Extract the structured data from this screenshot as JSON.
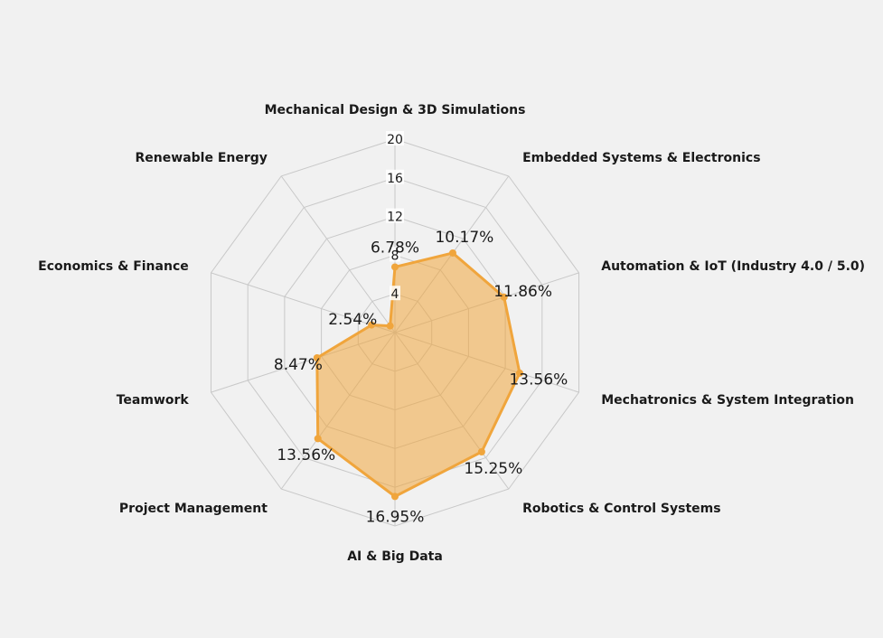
{
  "chart_data": {
    "type": "radar",
    "categories": [
      "Mechanical Design & 3D Simulations",
      "Embedded Systems & Electronics",
      "Automation & IoT (Industry 4.0 / 5.0)",
      "Mechatronics & System Integration",
      "Robotics & Control Systems",
      "AI & Big Data",
      "Project Management",
      "Teamwork",
      "Economics & Finance",
      "Renewable Energy"
    ],
    "values": [
      6.78,
      10.17,
      11.86,
      13.56,
      15.25,
      16.95,
      13.56,
      8.47,
      2.54,
      0.85
    ],
    "data_labels": [
      "6.78%",
      "10.17%",
      "11.86%",
      "13.56%",
      "15.25%",
      "16.95%",
      "13.56%",
      "8.47%",
      "2.54%",
      ""
    ],
    "radial_ticks": [
      4,
      8,
      12,
      16,
      20
    ],
    "radial_tick_labels": [
      "4",
      "8",
      "12",
      "16",
      "20"
    ],
    "rlim": [
      0,
      20
    ],
    "grid": true,
    "legend": "none",
    "colors": {
      "fill": "#f0a53c",
      "fill_opacity": 0.55,
      "line": "#f0a53c",
      "marker": "#f0a53c",
      "grid": "#c8c8c8",
      "background": "#f1f1f1",
      "text": "#1a1a1a"
    }
  }
}
